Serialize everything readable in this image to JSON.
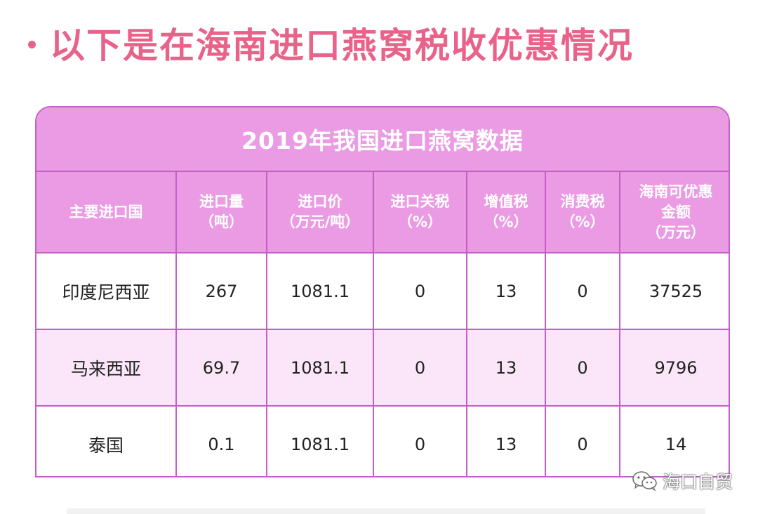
{
  "heading": {
    "text": "以下是在海南进口燕窝税收优惠情况"
  },
  "table": {
    "title": "2019年我国进口燕窝数据",
    "headers": [
      [
        "主要进口国"
      ],
      [
        "进口量",
        "（吨）"
      ],
      [
        "进口价",
        "（万元/吨）"
      ],
      [
        "进口关税",
        "（%）"
      ],
      [
        "增值税",
        "（%）"
      ],
      [
        "消费税",
        "（%）"
      ],
      [
        "海南可优惠",
        "金额",
        "（万元）"
      ]
    ],
    "rows": [
      [
        "印度尼西亚",
        "267",
        "1081.1",
        "0",
        "13",
        "0",
        "37525"
      ],
      [
        "马来西亚",
        "69.7",
        "1081.1",
        "0",
        "13",
        "0",
        "9796"
      ],
      [
        "泰国",
        "0.1",
        "1081.1",
        "0",
        "13",
        "0",
        "14"
      ]
    ]
  },
  "watermark": {
    "text": "海口自贸",
    "icon": "wechat-icon"
  },
  "colors": {
    "heading": "#e8628a",
    "header_bg": "#ea9be3",
    "border": "#c35fc6",
    "alt_row": "#fae6f8"
  }
}
